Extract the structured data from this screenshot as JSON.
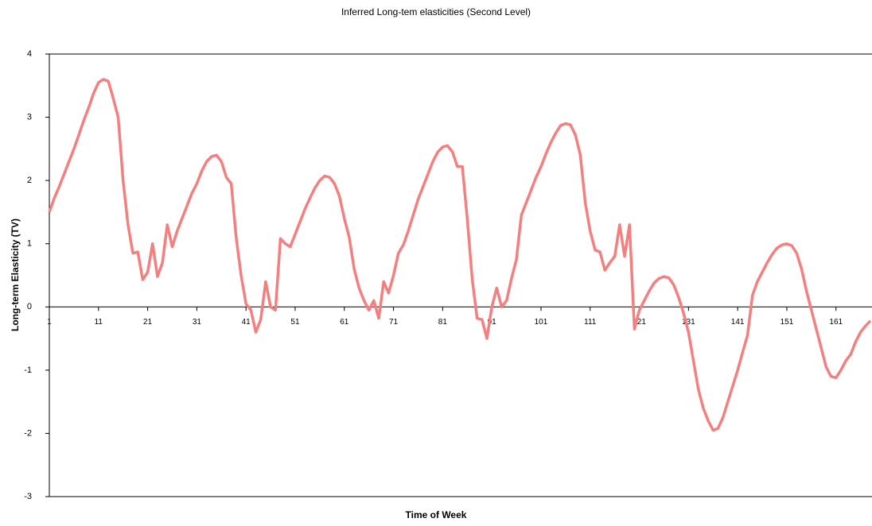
{
  "chart_data": {
    "type": "line",
    "title": "Inferred Long-tem elasticities (Second Level)",
    "x_label": "Time of Week",
    "y_label": "Long-term Elasticity (TV)",
    "x": [
      1,
      2,
      3,
      4,
      5,
      6,
      7,
      8,
      9,
      10,
      11,
      12,
      13,
      14,
      15,
      16,
      17,
      18,
      19,
      20,
      21,
      22,
      23,
      24,
      25,
      26,
      27,
      28,
      29,
      30,
      31,
      32,
      33,
      34,
      35,
      36,
      37,
      38,
      39,
      40,
      41,
      42,
      43,
      44,
      45,
      46,
      47,
      48,
      49,
      50,
      51,
      52,
      53,
      54,
      55,
      56,
      57,
      58,
      59,
      60,
      61,
      62,
      63,
      64,
      65,
      66,
      67,
      68,
      69,
      70,
      71,
      72,
      73,
      74,
      75,
      76,
      77,
      78,
      79,
      80,
      81,
      82,
      83,
      84,
      85,
      86,
      87,
      88,
      89,
      90,
      91,
      92,
      93,
      94,
      95,
      96,
      97,
      98,
      99,
      100,
      101,
      102,
      103,
      104,
      105,
      106,
      107,
      108,
      109,
      110,
      111,
      112,
      113,
      114,
      115,
      116,
      117,
      118,
      119,
      120,
      121,
      122,
      123,
      124,
      125,
      126,
      127,
      128,
      129,
      130,
      131,
      132,
      133,
      134,
      135,
      136,
      137,
      138,
      139,
      140,
      141,
      142,
      143,
      144,
      145,
      146,
      147,
      148,
      149,
      150,
      151,
      152,
      153,
      154,
      155,
      156,
      157,
      158,
      159,
      160,
      161,
      162,
      163,
      164,
      165,
      166,
      167,
      168
    ],
    "series": [
      {
        "name": "Long-term Elasticity (TV)",
        "color": "#f47f7f",
        "values": [
          1.5,
          1.72,
          1.9,
          2.1,
          2.3,
          2.5,
          2.72,
          2.95,
          3.15,
          3.38,
          3.55,
          3.6,
          3.57,
          3.3,
          3.0,
          2.0,
          1.3,
          0.85,
          0.87,
          0.43,
          0.55,
          1.0,
          0.48,
          0.7,
          1.3,
          0.95,
          1.2,
          1.4,
          1.6,
          1.8,
          1.95,
          2.15,
          2.3,
          2.38,
          2.4,
          2.3,
          2.05,
          1.95,
          1.1,
          0.5,
          0.05,
          -0.05,
          -0.4,
          -0.2,
          0.4,
          0,
          -0.05,
          1.08,
          1.0,
          0.95,
          1.15,
          1.35,
          1.55,
          1.72,
          1.88,
          2.0,
          2.07,
          2.05,
          1.95,
          1.75,
          1.4,
          1.1,
          0.6,
          0.3,
          0.1,
          -0.05,
          0.1,
          -0.18,
          0.4,
          0.22,
          0.5,
          0.85,
          0.98,
          1.2,
          1.45,
          1.7,
          1.9,
          2.1,
          2.3,
          2.45,
          2.53,
          2.55,
          2.45,
          2.22,
          2.22,
          1.4,
          0.45,
          -0.18,
          -0.2,
          -0.5,
          0,
          0.3,
          0,
          0.1,
          0.45,
          0.75,
          1.45,
          1.65,
          1.85,
          2.05,
          2.22,
          2.42,
          2.6,
          2.75,
          2.87,
          2.9,
          2.88,
          2.72,
          2.4,
          1.65,
          1.2,
          0.9,
          0.87,
          0.58,
          0.7,
          0.8,
          1.3,
          0.8,
          1.3,
          -0.35,
          -0.05,
          0.1,
          0.25,
          0.38,
          0.45,
          0.48,
          0.46,
          0.35,
          0.15,
          -0.1,
          -0.4,
          -0.85,
          -1.3,
          -1.6,
          -1.8,
          -1.95,
          -1.92,
          -1.75,
          -1.5,
          -1.25,
          -1.0,
          -0.72,
          -0.45,
          0.18,
          0.4,
          0.55,
          0.7,
          0.83,
          0.93,
          0.98,
          1.0,
          0.97,
          0.85,
          0.6,
          0.25,
          -0.05,
          -0.35,
          -0.65,
          -0.95,
          -1.1,
          -1.12,
          -1.0,
          -0.85,
          -0.75,
          -0.55,
          -0.4,
          -0.3,
          -0.22
        ]
      }
    ],
    "xlim": [
      1,
      168
    ],
    "xticks": [
      1,
      11,
      21,
      31,
      41,
      51,
      61,
      71,
      81,
      91,
      101,
      111,
      121,
      131,
      141,
      151,
      161
    ],
    "ylim": [
      -3,
      4
    ],
    "yticks": [
      -3,
      -2,
      -1,
      0,
      1,
      2,
      3,
      4
    ]
  }
}
